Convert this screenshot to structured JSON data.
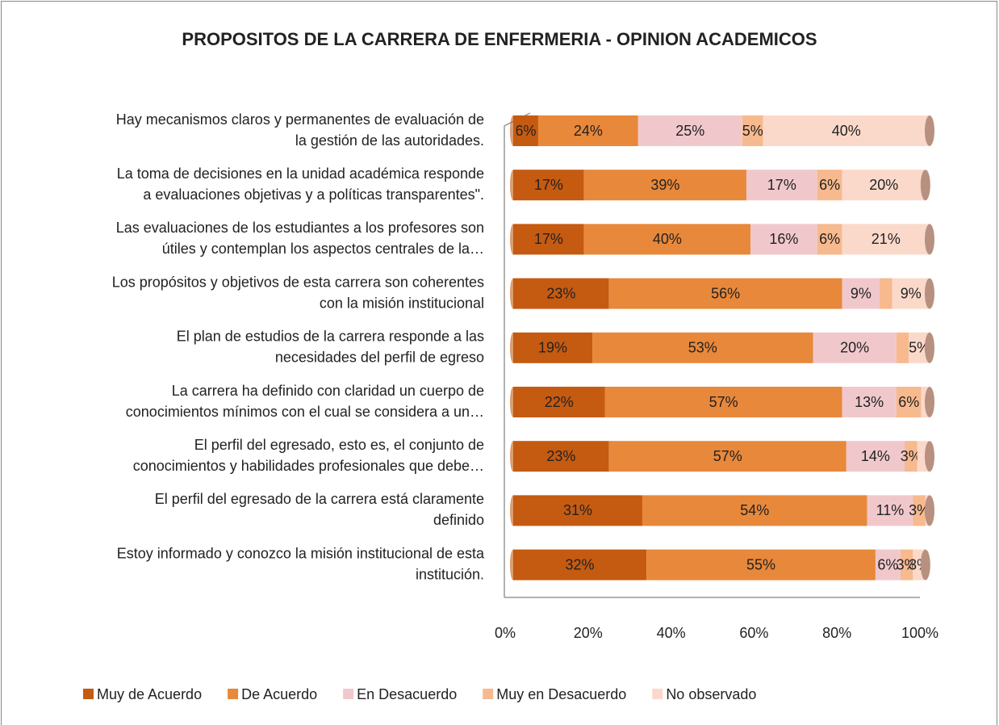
{
  "chart_data": {
    "type": "stacked-bar-horizontal",
    "title": "PROPOSITOS DE LA CARRERA DE ENFERMERIA - OPINION ACADEMICOS",
    "categories": [
      [
        "Hay mecanismos claros y permanentes de evaluación de",
        "la gestión de las autoridades."
      ],
      [
        "La toma de decisiones en la unidad académica responde",
        "a evaluaciones objetivas y a políticas transparentes\"."
      ],
      [
        "Las evaluaciones de los estudiantes a los profesores son",
        "útiles y contemplan los aspectos centrales de la…"
      ],
      [
        "Los propósitos y objetivos de esta carrera son coherentes",
        "con la misión institucional"
      ],
      [
        "El plan de estudios de la carrera responde a las",
        "necesidades del perfil de egreso"
      ],
      [
        "La carrera ha definido con claridad un cuerpo de",
        "conocimientos mínimos con el cual se considera a un…"
      ],
      [
        "El perfil del egresado, esto es, el conjunto de",
        "conocimientos y habilidades profesionales que debe…"
      ],
      [
        "El perfil del egresado de la carrera está claramente",
        "definido"
      ],
      [
        "Estoy informado y conozco la misión institucional de esta",
        "institución."
      ]
    ],
    "series": [
      {
        "name": "Muy de Acuerdo",
        "color": "#c55a11",
        "values": [
          6,
          17,
          17,
          23,
          19,
          22,
          23,
          31,
          32
        ],
        "value_labels": [
          "6%",
          "17%",
          "17%",
          "23%",
          "19%",
          "22%",
          "23%",
          "31%",
          "32%"
        ]
      },
      {
        "name": "De Acuerdo",
        "color": "#e8883a",
        "values": [
          24,
          39,
          40,
          56,
          53,
          57,
          57,
          54,
          55
        ],
        "value_labels": [
          "24%",
          "39%",
          "40%",
          "56%",
          "53%",
          "57%",
          "57%",
          "54%",
          "55%"
        ]
      },
      {
        "name": "En Desacuerdo",
        "color": "#f0c8cc",
        "values": [
          25,
          17,
          16,
          9,
          20,
          13,
          14,
          11,
          6
        ],
        "value_labels": [
          "25%",
          "17%",
          "16%",
          "9%",
          "20%",
          "13%",
          "14%",
          "11%",
          "6%"
        ]
      },
      {
        "name": "Muy en Desacuerdo",
        "color": "#f7b98e",
        "values": [
          5,
          6,
          6,
          3,
          3,
          6,
          3,
          3,
          3
        ],
        "value_labels": [
          "5%",
          "6%",
          "6%",
          null,
          null,
          "6%",
          "3%",
          "3%",
          "3%"
        ]
      },
      {
        "name": "No observado",
        "color": "#fbd9ca",
        "values": [
          40,
          20,
          21,
          9,
          5,
          2,
          3,
          1,
          3
        ],
        "value_labels": [
          "40%",
          "20%",
          "21%",
          "9%",
          "5%",
          null,
          null,
          null,
          "3%"
        ]
      }
    ],
    "xlim": [
      0,
      100
    ],
    "xticks": [
      {
        "value": 0,
        "label": "0%"
      },
      {
        "value": 20,
        "label": "20%"
      },
      {
        "value": 40,
        "label": "40%"
      },
      {
        "value": 60,
        "label": "60%"
      },
      {
        "value": 80,
        "label": "80%"
      },
      {
        "value": 100,
        "label": "100%"
      }
    ],
    "legend": "bottom"
  }
}
